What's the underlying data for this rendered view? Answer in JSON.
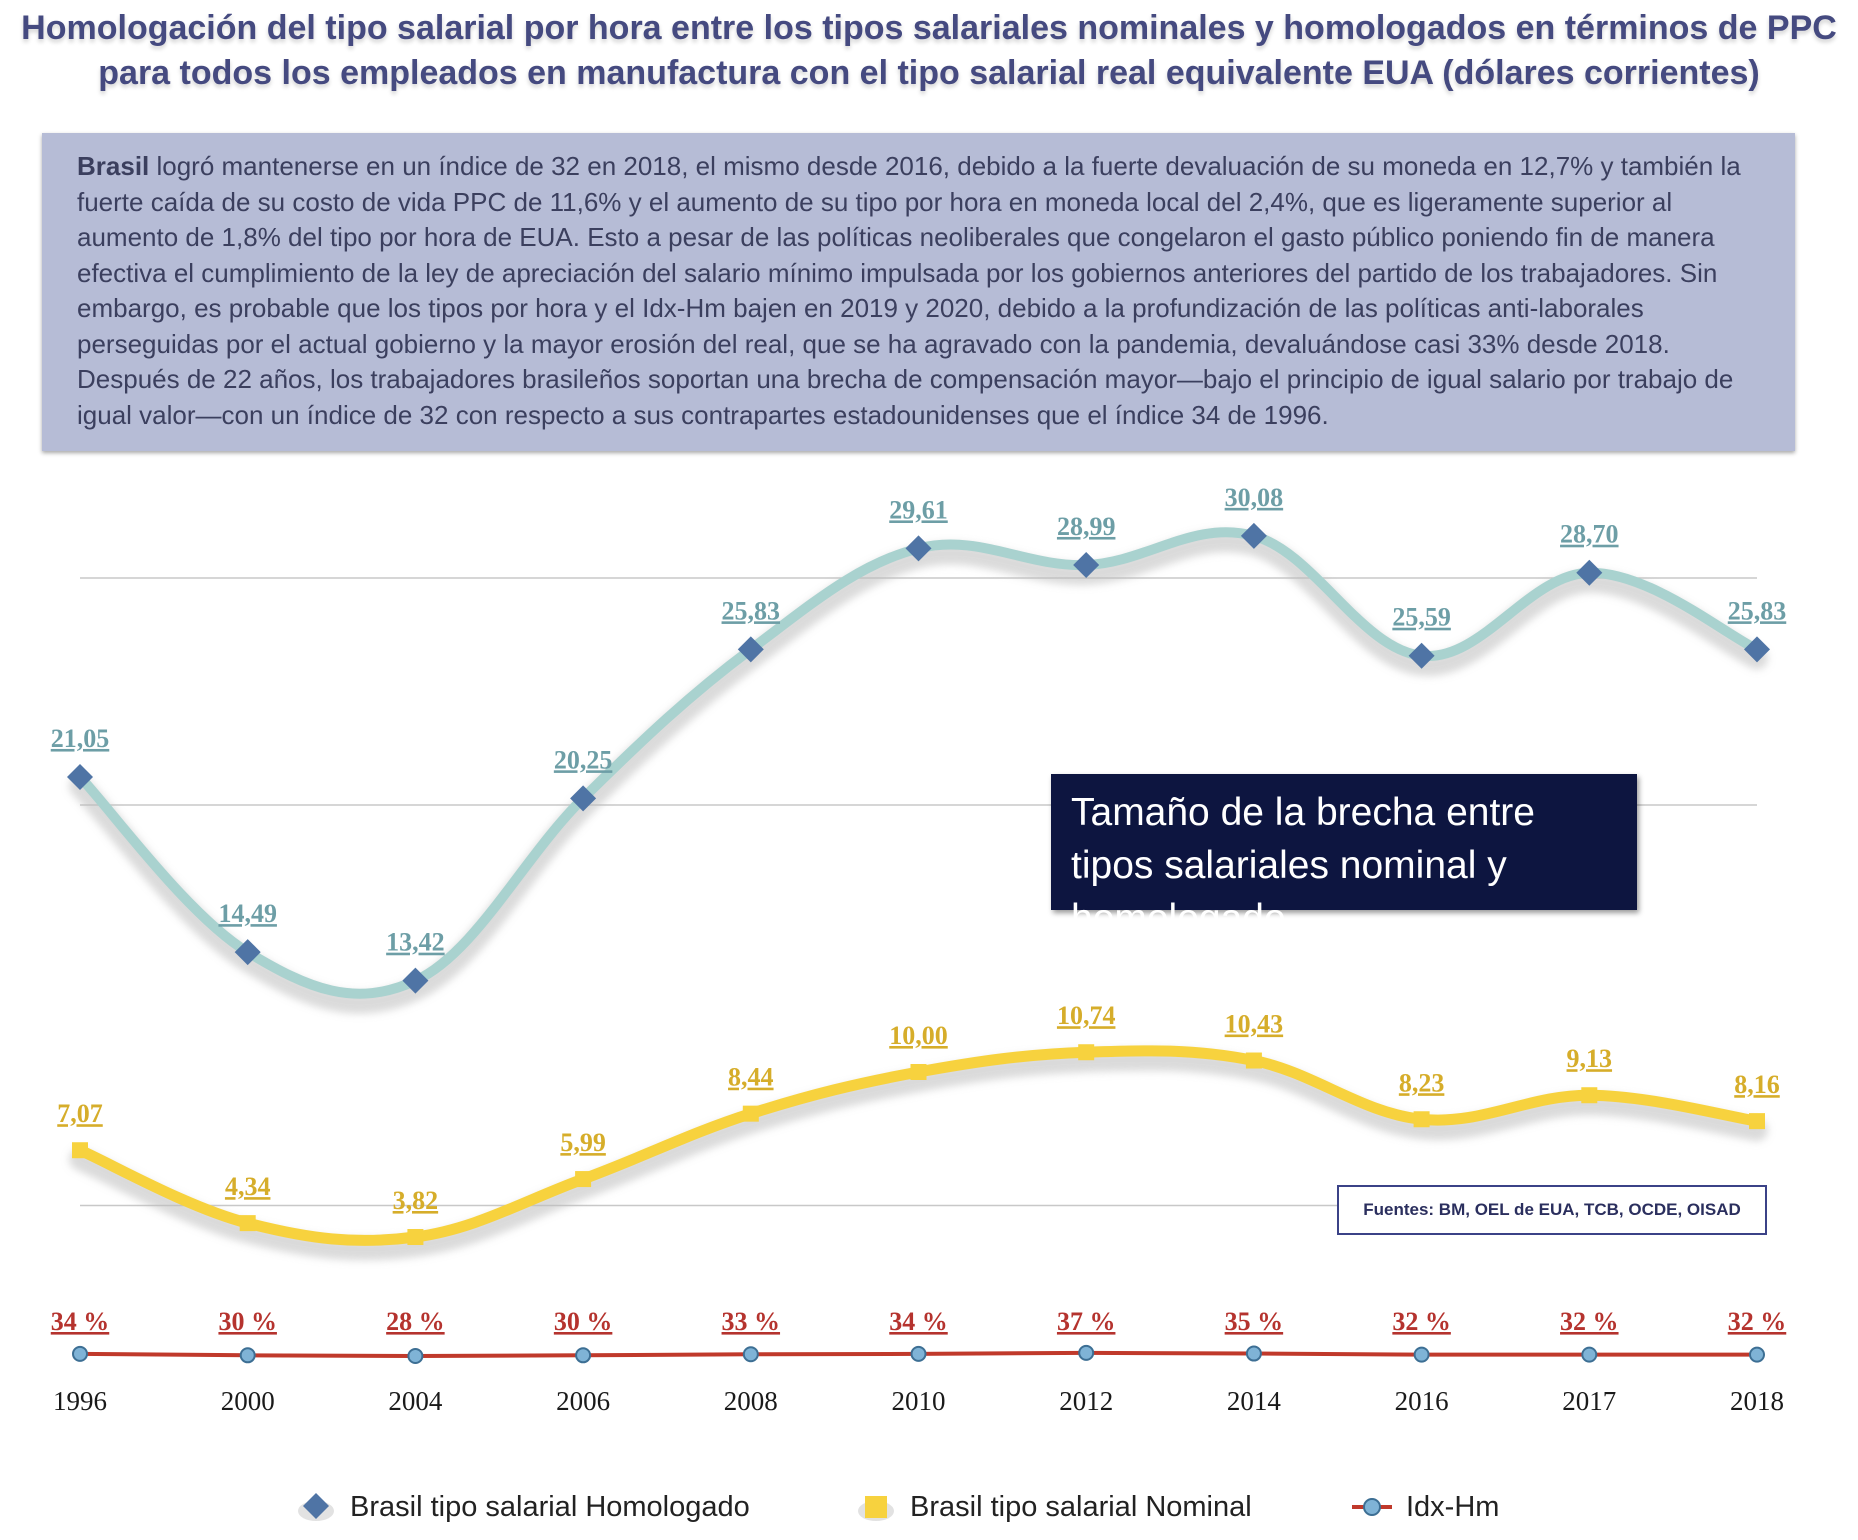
{
  "title": "Homologación del tipo salarial por hora entre los tipos salariales nominales y homologados en términos de PPC para todos los empleados en manufactura con el tipo salarial real equivalente EUA (dólares corrientes)",
  "summary": {
    "lead": "Brasil",
    "text": " logró mantenerse en un índice de 32 en 2018, el mismo desde 2016, debido a la fuerte devaluación de su moneda en 12,7% y también la fuerte caída de su costo de vida PPC de 11,6% y el aumento de su tipo por hora en moneda local del 2,4%, que es ligeramente superior al aumento de 1,8% del tipo por hora de EUA. Esto a pesar de las políticas neoliberales que congelaron el gasto público poniendo fin de manera efectiva el cumplimiento de la ley de apreciación del salario mínimo impulsada por los gobiernos anteriores del partido de los trabajadores. Sin embargo, es probable que los tipos por hora y el Idx-Hm bajen en 2019 y 2020, debido a la profundización de las políticas anti-laborales perseguidas por el actual gobierno y la mayor erosión del real, que se ha agravado con la pandemia, devaluándose casi 33% desde 2018. Después de 22 años, los trabajadores brasileños soportan una brecha de compensación mayor—bajo el principio de igual salario por trabajo de igual valor—con un índice de 32 con respecto a sus contrapartes estadounidenses que el índice 34 de 1996."
  },
  "brecha_box": "Tamaño de la brecha entre tipos salariales nominal y homologado",
  "sources": "Fuentes: BM, OEL de EUA, TCB, OCDE, OISAD",
  "chart_data": {
    "type": "line",
    "categories": [
      "1996",
      "2000",
      "2004",
      "2006",
      "2008",
      "2010",
      "2012",
      "2014",
      "2016",
      "2017",
      "2018"
    ],
    "series": [
      {
        "name": "Brasil tipo salarial Homologado",
        "values": [
          21.05,
          14.49,
          13.42,
          20.25,
          25.83,
          29.61,
          28.99,
          30.08,
          25.59,
          28.7,
          25.83
        ],
        "labels": [
          "21,05",
          "14,49",
          "13,42",
          "20,25",
          "25,83",
          "29,61",
          "28,99",
          "30,08",
          "25,59",
          "28,70",
          "25,83"
        ],
        "color": "#a9d2cf",
        "marker": "diamond",
        "marker_color": "#4f74a5",
        "label_color": "#6d9ea6"
      },
      {
        "name": "Brasil tipo salarial Nominal",
        "values": [
          7.07,
          4.34,
          3.82,
          5.99,
          8.44,
          10.0,
          10.74,
          10.43,
          8.23,
          9.13,
          8.16
        ],
        "labels": [
          "7,07",
          "4,34",
          "3,82",
          "5,99",
          "8,44",
          "10,00",
          "10,74",
          "10,43",
          "8,23",
          "9,13",
          "8,16"
        ],
        "color": "#f7d23e",
        "marker": "square",
        "marker_color": "#f7d23e",
        "label_color": "#d6ad2a"
      },
      {
        "name": "Idx-Hm",
        "values": [
          34,
          30,
          28,
          30,
          33,
          34,
          37,
          35,
          32,
          32,
          32
        ],
        "labels": [
          "34 %",
          "30 %",
          "28 %",
          "30 %",
          "33 %",
          "34 %",
          "37 %",
          "35 %",
          "32 %",
          "32 %",
          "32 %"
        ],
        "color": "#c0392b",
        "marker": "circle",
        "marker_color": "#7fb3d6",
        "label_color": "#b5332e"
      }
    ],
    "grid": true,
    "legend_position": "bottom"
  }
}
